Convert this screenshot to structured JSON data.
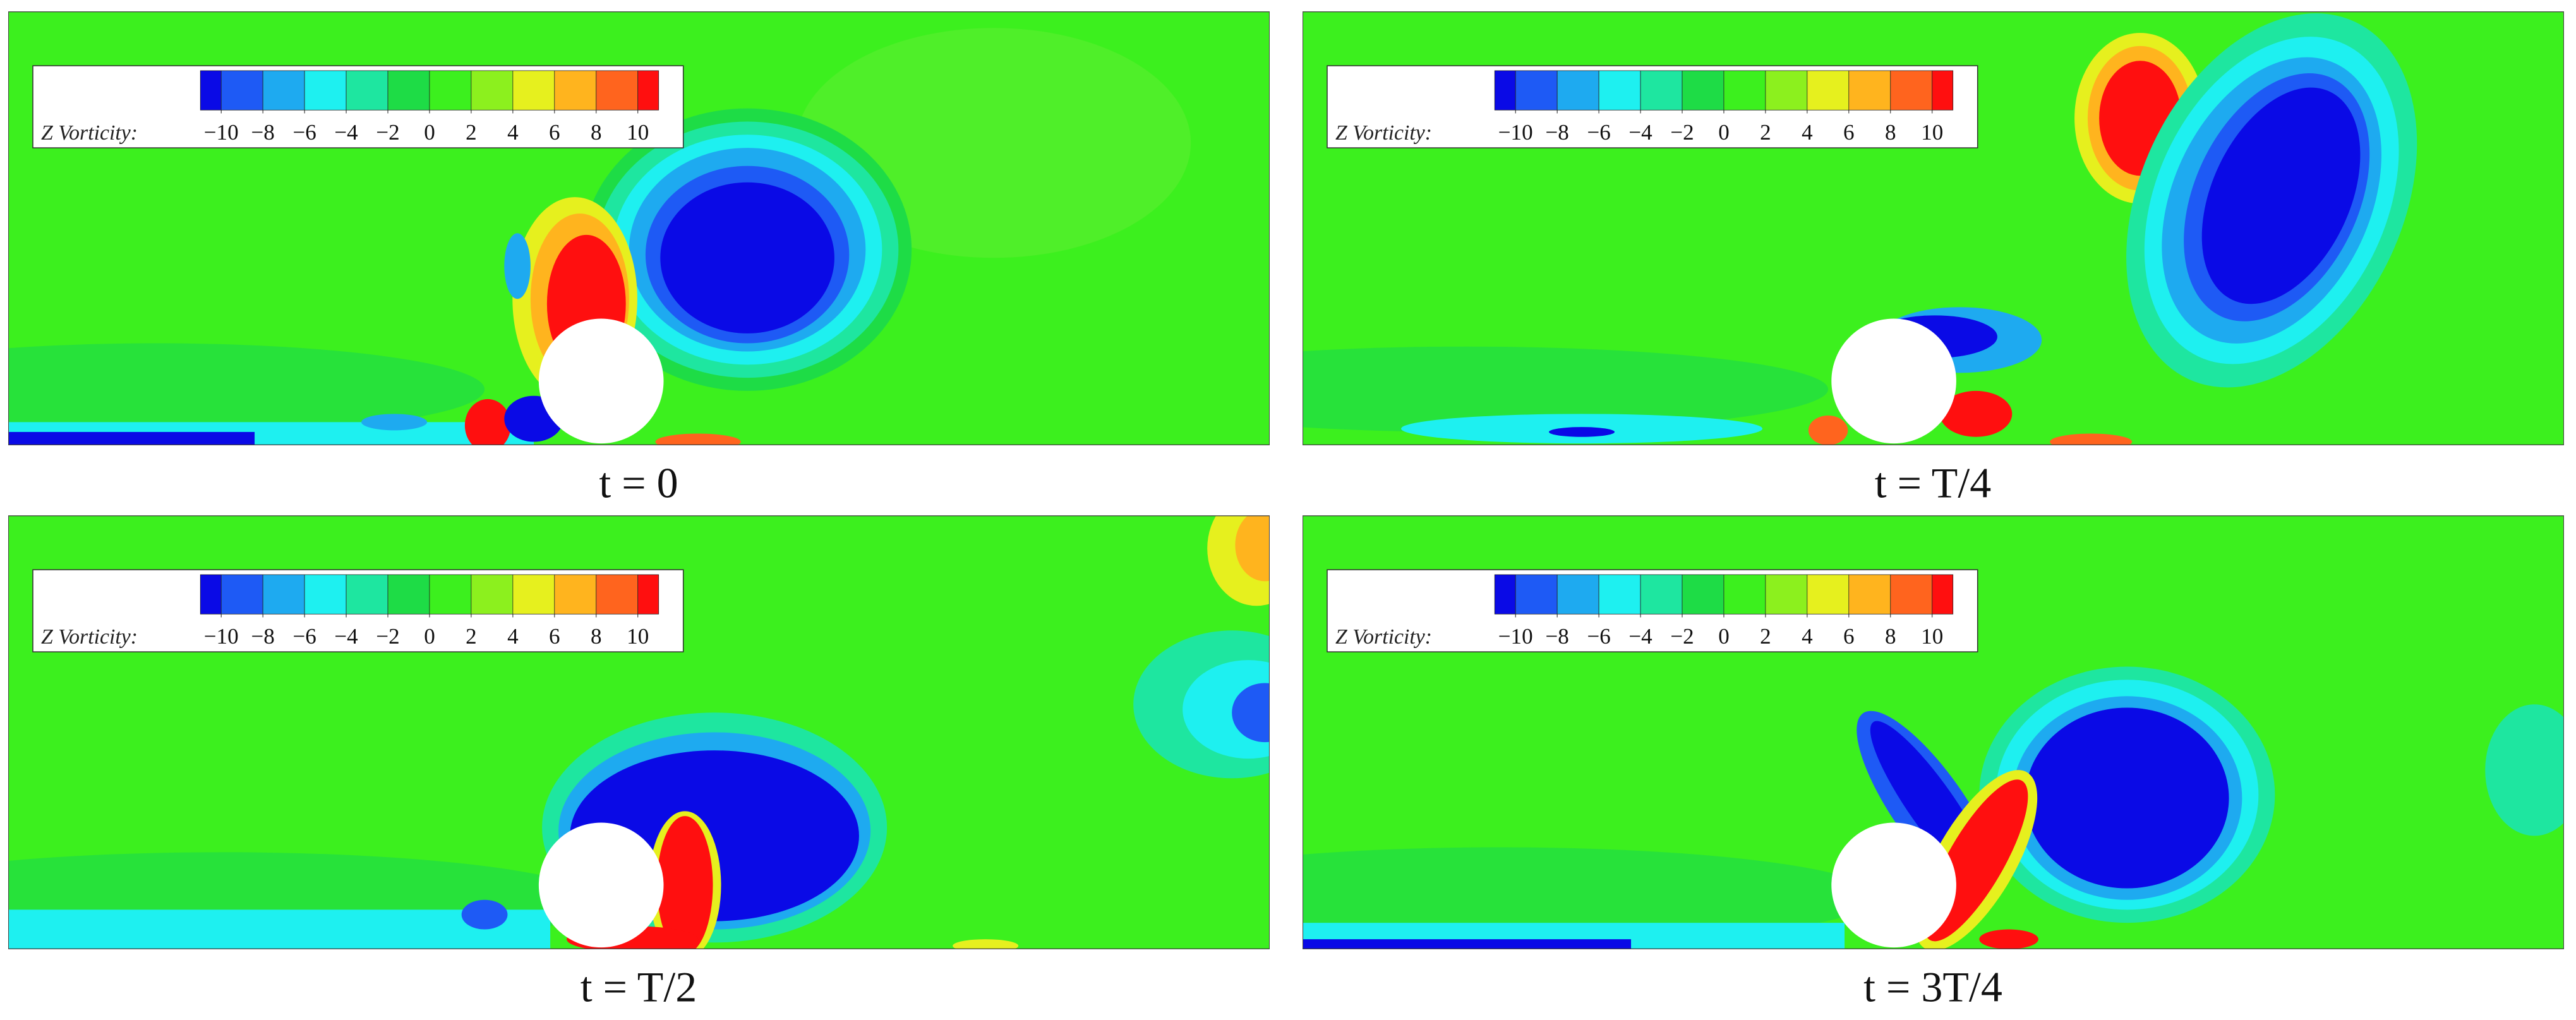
{
  "chart_data": [
    {
      "type": "contour",
      "caption": "t = 0",
      "colorbar": {
        "label": "Z Vorticity:",
        "clim": [
          -11,
          11
        ],
        "ticks": [
          {
            "value": -10,
            "label": "−10"
          },
          {
            "value": -8,
            "label": "−8"
          },
          {
            "value": -6,
            "label": "−6"
          },
          {
            "value": -4,
            "label": "−4"
          },
          {
            "value": -2,
            "label": "−2"
          },
          0,
          2,
          4,
          6,
          8,
          10
        ],
        "colors": [
          "#0a0ae6",
          "#1e5af5",
          "#1eaaf0",
          "#1ef0f0",
          "#1ee6a0",
          "#1edc46",
          "#3cf01e",
          "#8cf01e",
          "#e6f01e",
          "#ffb41e",
          "#ff641e",
          "#ff0f0f"
        ]
      }
    },
    {
      "type": "contour",
      "caption": "t = T/4",
      "colorbar": {
        "label": "Z Vorticity:",
        "clim": [
          -11,
          11
        ],
        "ticks": [
          {
            "value": -10,
            "label": "−10"
          },
          {
            "value": -8,
            "label": "−8"
          },
          {
            "value": -6,
            "label": "−6"
          },
          {
            "value": -4,
            "label": "−4"
          },
          {
            "value": -2,
            "label": "−2"
          },
          0,
          2,
          4,
          6,
          8,
          10
        ],
        "colors": [
          "#0a0ae6",
          "#1e5af5",
          "#1eaaf0",
          "#1ef0f0",
          "#1ee6a0",
          "#1edc46",
          "#3cf01e",
          "#8cf01e",
          "#e6f01e",
          "#ffb41e",
          "#ff641e",
          "#ff0f0f"
        ]
      }
    },
    {
      "type": "contour",
      "caption": "t = T/2",
      "colorbar": {
        "label": "Z Vorticity:",
        "clim": [
          -11,
          11
        ],
        "ticks": [
          {
            "value": -10,
            "label": "−10"
          },
          {
            "value": -8,
            "label": "−8"
          },
          {
            "value": -6,
            "label": "−6"
          },
          {
            "value": -4,
            "label": "−4"
          },
          {
            "value": -2,
            "label": "−2"
          },
          0,
          2,
          4,
          6,
          8,
          10
        ],
        "colors": [
          "#0a0ae6",
          "#1e5af5",
          "#1eaaf0",
          "#1ef0f0",
          "#1ee6a0",
          "#1edc46",
          "#3cf01e",
          "#8cf01e",
          "#e6f01e",
          "#ffb41e",
          "#ff641e",
          "#ff0f0f"
        ]
      }
    },
    {
      "type": "contour",
      "caption": "t = 3T/4",
      "colorbar": {
        "label": "Z Vorticity:",
        "clim": [
          -11,
          11
        ],
        "ticks": [
          {
            "value": -10,
            "label": "−10"
          },
          {
            "value": -8,
            "label": "−8"
          },
          {
            "value": -6,
            "label": "−6"
          },
          {
            "value": -4,
            "label": "−4"
          },
          {
            "value": -2,
            "label": "−2"
          },
          0,
          2,
          4,
          6,
          8,
          10
        ],
        "colors": [
          "#0a0ae6",
          "#1e5af5",
          "#1eaaf0",
          "#1ef0f0",
          "#1ee6a0",
          "#1edc46",
          "#3cf01e",
          "#8cf01e",
          "#e6f01e",
          "#ffb41e",
          "#ff641e",
          "#ff0f0f"
        ]
      }
    }
  ]
}
